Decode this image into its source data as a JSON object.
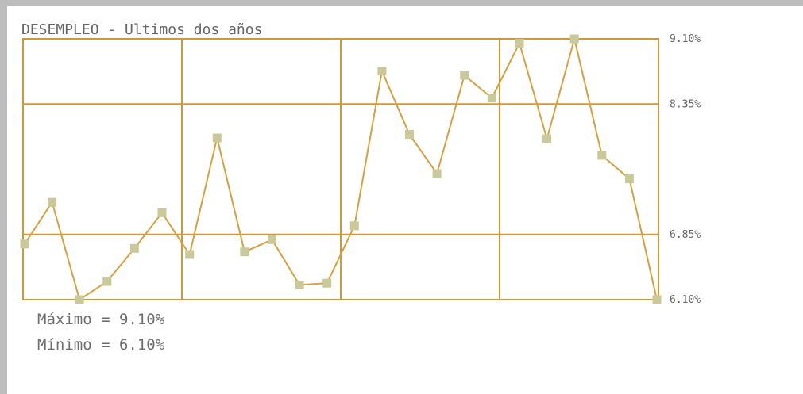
{
  "chart_data": {
    "type": "line",
    "title": "DESEMPLEO - Ultimos dos años",
    "xlabel": "",
    "ylabel": "",
    "ylim": [
      6.1,
      9.1
    ],
    "y_ticks": [
      9.1,
      8.35,
      6.85,
      6.1
    ],
    "y_tick_labels": [
      "9.10%",
      "8.35%",
      "6.85%",
      "6.10%"
    ],
    "x_gridlines": 4,
    "grid": true,
    "colors": {
      "line": "#d8a03c",
      "marker": "#c9c99a",
      "grid": "#cf9a35"
    },
    "series": [
      {
        "values": [
          6.74,
          7.22,
          6.1,
          6.31,
          6.69,
          7.1,
          6.62,
          7.96,
          6.65,
          6.79,
          6.27,
          6.29,
          6.95,
          8.73,
          8.0,
          7.55,
          8.68,
          8.42,
          9.05,
          7.95,
          9.1,
          7.76,
          7.49,
          6.1
        ]
      }
    ]
  },
  "stats": {
    "max_label": "Máximo = 9.10%",
    "min_label": "Mínimo = 6.10%"
  }
}
